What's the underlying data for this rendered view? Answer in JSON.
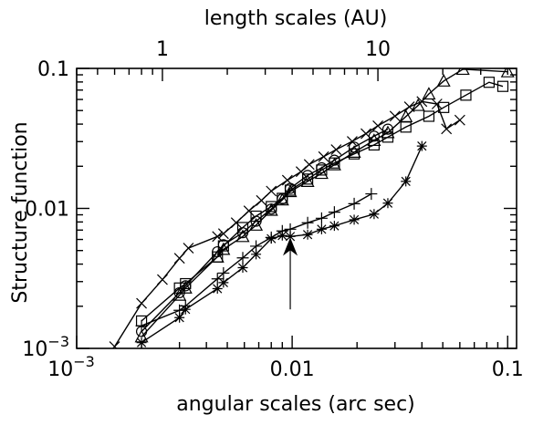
{
  "chart_data": {
    "type": "line",
    "xlabel": "angular scales (arc sec)",
    "ylabel": "Structure function",
    "top_xlabel": "length scales (AU)",
    "xscale": "log",
    "yscale": "log",
    "xlim": [
      0.001,
      0.11
    ],
    "ylim": [
      0.001,
      0.1
    ],
    "top_xlim": [
      0.4,
      44
    ],
    "grid": false,
    "x_ticks": [
      {
        "value": 0.001,
        "label": "10",
        "sup": "−3"
      },
      {
        "value": 0.01,
        "label": "0.01",
        "sup": ""
      },
      {
        "value": 0.1,
        "label": "0.1",
        "sup": ""
      }
    ],
    "y_ticks": [
      {
        "value": 0.001,
        "label": "10",
        "sup": "−3"
      },
      {
        "value": 0.01,
        "label": "0.01",
        "sup": ""
      },
      {
        "value": 0.1,
        "label": "0.1",
        "sup": ""
      }
    ],
    "top_ticks": [
      {
        "value": 1,
        "label": "1"
      },
      {
        "value": 10,
        "label": "10"
      }
    ],
    "series": [
      {
        "marker": "x",
        "x": [
          0.0015,
          0.002,
          0.0025,
          0.003,
          0.0033,
          0.0045,
          0.0048,
          0.0055,
          0.0063,
          0.0072,
          0.008,
          0.0095,
          0.011,
          0.012,
          0.014,
          0.016,
          0.019,
          0.022,
          0.025,
          0.03,
          0.035,
          0.04,
          0.047,
          0.052,
          0.06
        ],
        "y": [
          0.00103,
          0.0021,
          0.0031,
          0.0044,
          0.0052,
          0.0063,
          0.0066,
          0.0079,
          0.0096,
          0.0114,
          0.0133,
          0.0159,
          0.0183,
          0.0206,
          0.0234,
          0.0263,
          0.0301,
          0.0342,
          0.0389,
          0.0456,
          0.0532,
          0.058,
          0.0557,
          0.037,
          0.0427
        ]
      },
      {
        "marker": "square",
        "x": [
          0.002,
          0.003,
          0.0032,
          0.0045,
          0.0048,
          0.0059,
          0.0068,
          0.008,
          0.009,
          0.0098,
          0.0118,
          0.0137,
          0.0157,
          0.0194,
          0.024,
          0.0278,
          0.0337,
          0.0431,
          0.0505,
          0.064,
          0.082,
          0.095
        ],
        "y": [
          0.00157,
          0.0027,
          0.0029,
          0.0045,
          0.0054,
          0.0073,
          0.0088,
          0.0103,
          0.0118,
          0.0135,
          0.0162,
          0.0188,
          0.0211,
          0.0245,
          0.0284,
          0.0323,
          0.0381,
          0.0455,
          0.0526,
          0.0644,
          0.0796,
          0.0744
        ]
      },
      {
        "marker": "circle",
        "x": [
          0.002,
          0.003,
          0.0032,
          0.0045,
          0.0048,
          0.0059,
          0.0068,
          0.008,
          0.009,
          0.0098,
          0.0118,
          0.0137,
          0.0157,
          0.0194,
          0.024,
          0.0278
        ],
        "y": [
          0.00132,
          0.0025,
          0.0028,
          0.0049,
          0.0055,
          0.0067,
          0.0081,
          0.0099,
          0.0117,
          0.0139,
          0.0172,
          0.0195,
          0.0221,
          0.0274,
          0.0328,
          0.0368
        ]
      },
      {
        "marker": "triangle",
        "x": [
          0.002,
          0.003,
          0.0032,
          0.0045,
          0.0048,
          0.0059,
          0.0068,
          0.008,
          0.009,
          0.0098,
          0.0118,
          0.0137,
          0.0157,
          0.0194,
          0.024,
          0.0278,
          0.0337,
          0.0384,
          0.0431,
          0.0505,
          0.062,
          0.1
        ],
        "y": [
          0.00121,
          0.0024,
          0.0027,
          0.0045,
          0.0051,
          0.0063,
          0.0076,
          0.0097,
          0.0115,
          0.0132,
          0.0156,
          0.0178,
          0.0205,
          0.0252,
          0.0306,
          0.0348,
          0.0453,
          0.0544,
          0.0657,
          0.0813,
          0.0986,
          0.0946
        ]
      },
      {
        "marker": "plus",
        "x": [
          0.002,
          0.003,
          0.0032,
          0.0045,
          0.0048,
          0.0059,
          0.0068,
          0.008,
          0.009,
          0.0098,
          0.0118,
          0.0137,
          0.0157,
          0.0194,
          0.0233
        ],
        "y": [
          0.00145,
          0.00187,
          0.00201,
          0.00314,
          0.00345,
          0.00443,
          0.00537,
          0.0062,
          0.0069,
          0.0071,
          0.0079,
          0.0085,
          0.0094,
          0.0108,
          0.0127
        ]
      },
      {
        "marker": "asterisk",
        "x": [
          0.002,
          0.003,
          0.0032,
          0.0045,
          0.0048,
          0.0059,
          0.0068,
          0.008,
          0.009,
          0.0098,
          0.0118,
          0.0137,
          0.0157,
          0.0194,
          0.024,
          0.0278,
          0.0337,
          0.04
        ],
        "y": [
          0.0011,
          0.00166,
          0.0019,
          0.00267,
          0.00295,
          0.00377,
          0.0047,
          0.00608,
          0.0064,
          0.0063,
          0.0065,
          0.0071,
          0.0075,
          0.0083,
          0.0091,
          0.0109,
          0.0156,
          0.0279
        ]
      }
    ],
    "annotations": [
      {
        "type": "arrow",
        "x": 0.0098,
        "y_from": 0.0019,
        "y_to": 0.0062
      }
    ]
  }
}
